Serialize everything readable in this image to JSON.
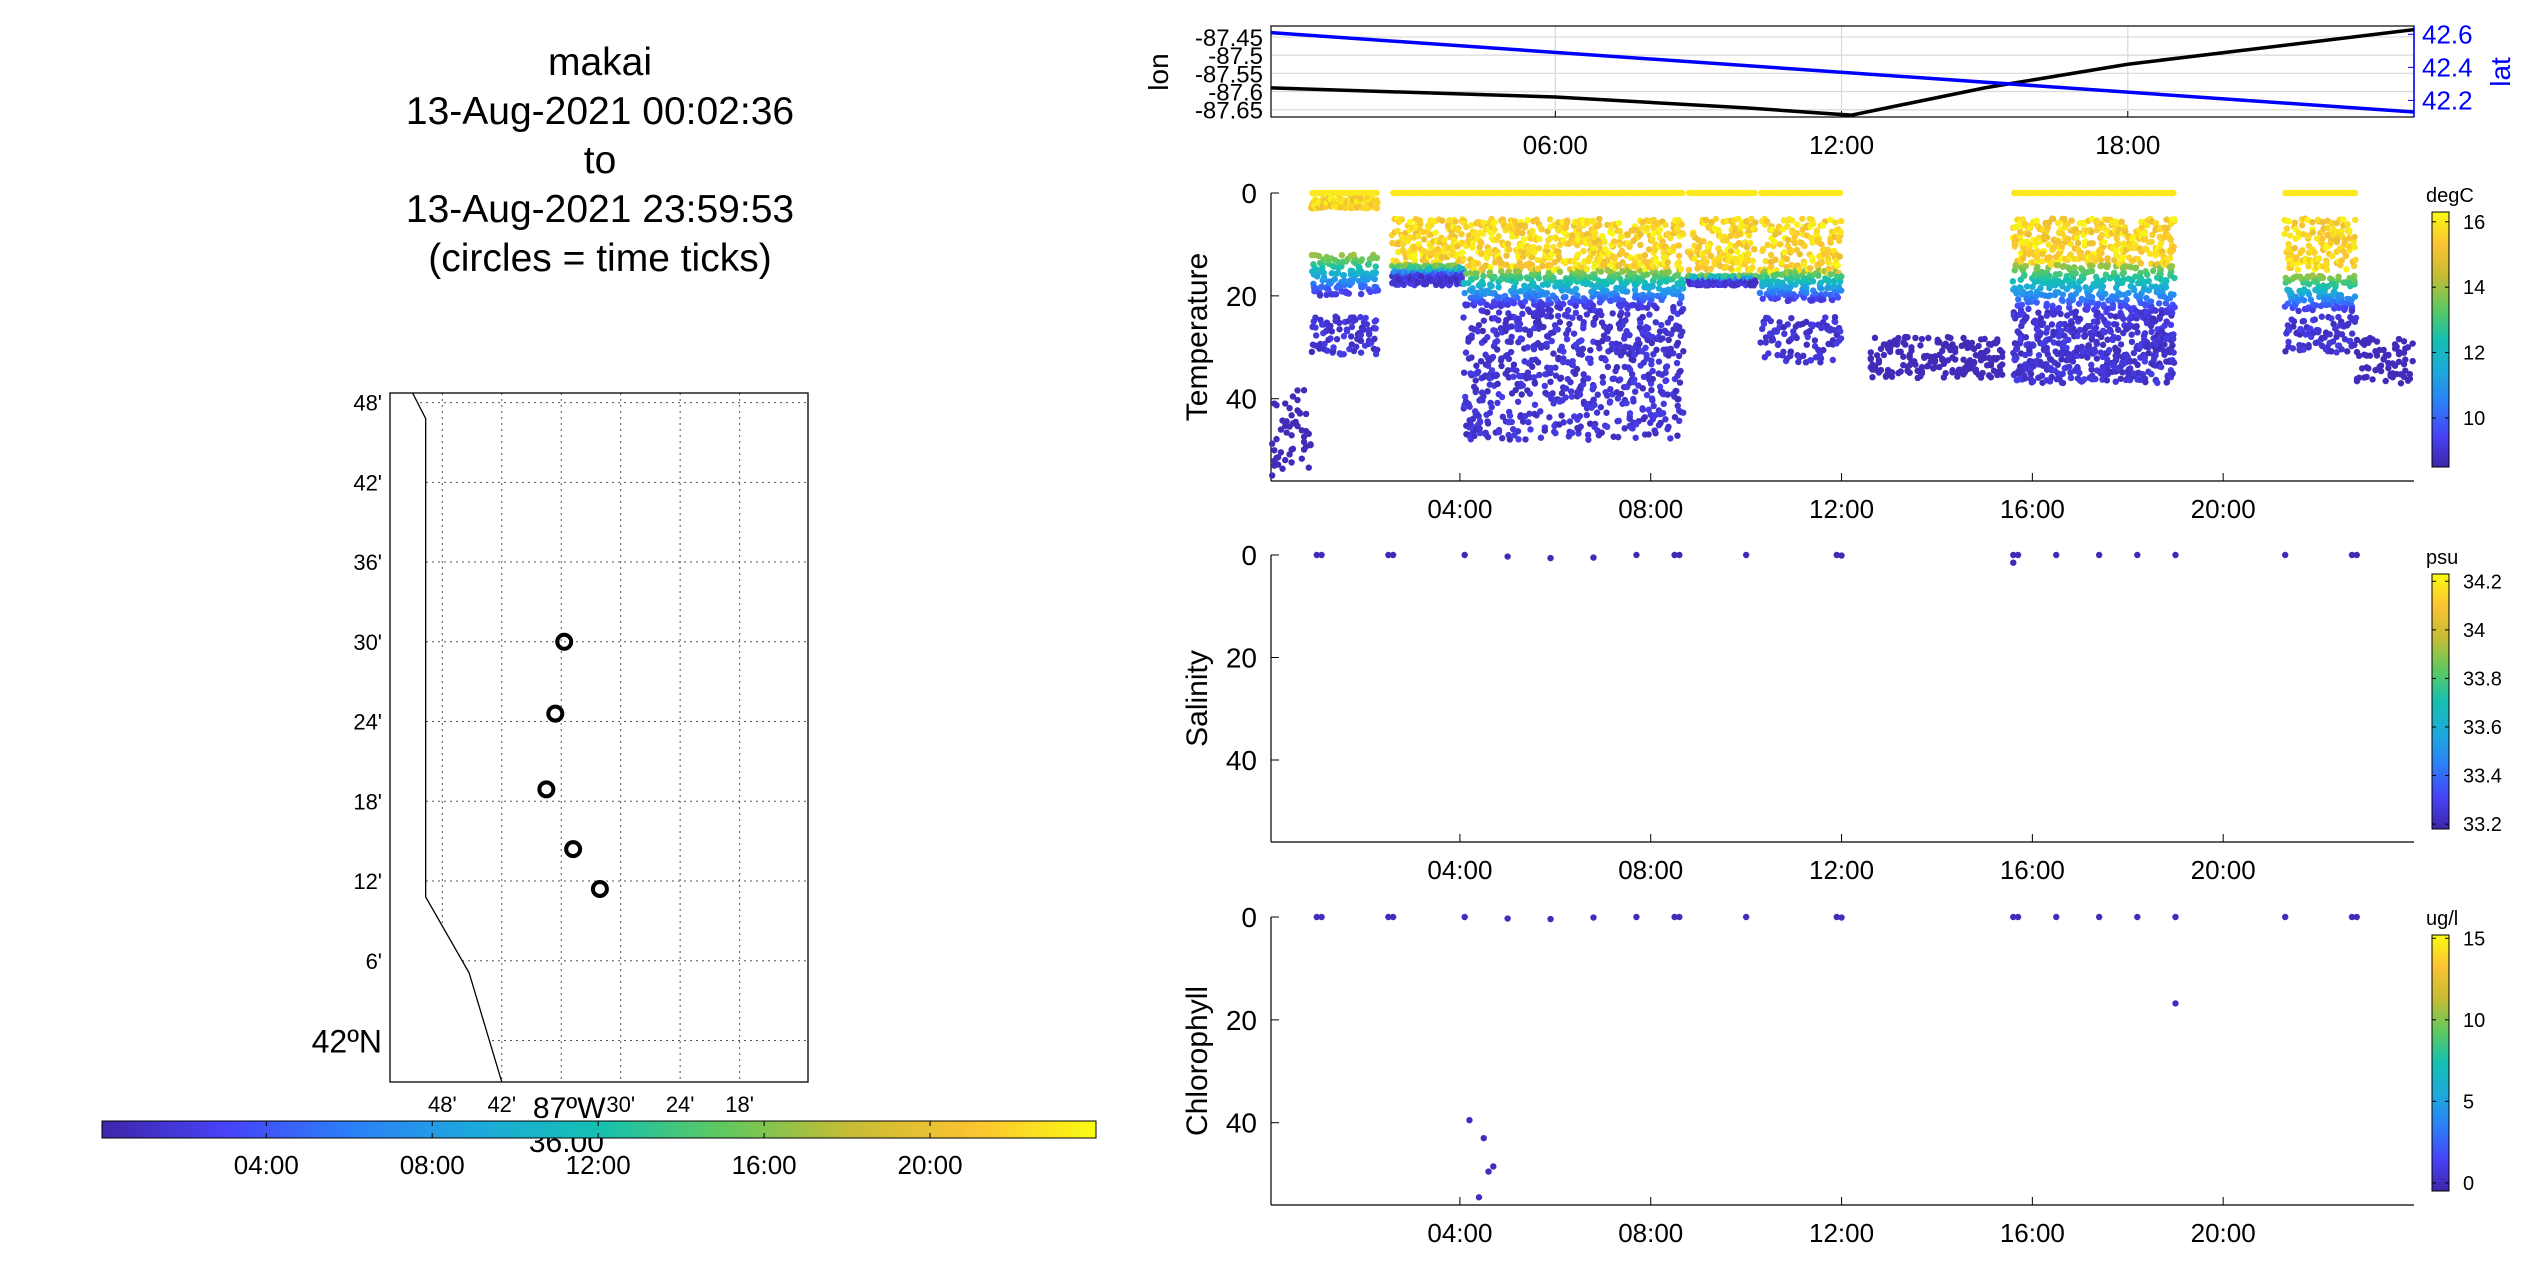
{
  "title": {
    "lines": [
      "makai",
      "13-Aug-2021 00:02:36",
      "to",
      "13-Aug-2021 23:59:53",
      "(circles = time ticks)"
    ]
  },
  "colors": {
    "lat_line": "#0000ff",
    "lon_line": "#000000",
    "grid": "#d9d9d9",
    "parula": [
      "#3e26a8",
      "#4743f8",
      "#2c7ff8",
      "#1da9dc",
      "#14c0b1",
      "#5fc95e",
      "#c6bc34",
      "#fbc332",
      "#f9fa13"
    ]
  },
  "chart_data": [
    {
      "id": "map",
      "type": "scatter",
      "ylabels": [
        "48'",
        "42'",
        "36'",
        "30'",
        "24'",
        "18'",
        "12'",
        "6'",
        "42ºN"
      ],
      "xlabels": [
        "48'",
        "42'",
        "87ºW 36.00'",
        "30'",
        "24'",
        "18'"
      ],
      "xlim": [
        -87.888,
        -87.185
      ],
      "ylim": [
        41.948,
        42.812
      ],
      "coastline": [
        [
          -87.85,
          42.812
        ],
        [
          -87.828,
          42.78
        ],
        [
          -87.828,
          42.18
        ],
        [
          -87.755,
          42.085
        ],
        [
          -87.7,
          41.948
        ]
      ],
      "points": [
        [
          -87.595,
          42.5
        ],
        [
          -87.61,
          42.41
        ],
        [
          -87.625,
          42.315
        ],
        [
          -87.58,
          42.24
        ],
        [
          -87.535,
          42.19
        ]
      ],
      "colorbar": {
        "ticks": [
          "04:00",
          "08:00",
          "12:00",
          "16:00",
          "20:00"
        ],
        "range_hours": [
          0.04,
          24
        ]
      }
    },
    {
      "id": "lonlat",
      "type": "line",
      "ylabel": "lon",
      "ylabel_right": "lat",
      "xlim_hours": [
        0.04,
        24
      ],
      "xticks": [
        "06:00",
        "12:00",
        "18:00"
      ],
      "ylim": [
        -87.67,
        -87.42
      ],
      "yticks": [
        "-87.45",
        "-87.5",
        "-87.55",
        "-87.6",
        "-87.65"
      ],
      "ylim_right": [
        42.1,
        42.65
      ],
      "yticks_right": [
        "42.6",
        "42.4",
        "42.2"
      ],
      "series": [
        {
          "name": "lon",
          "hours": [
            0.04,
            6,
            10,
            12.2,
            15,
            18,
            24
          ],
          "values": [
            -87.59,
            -87.615,
            -87.645,
            -87.665,
            -87.59,
            -87.525,
            -87.43
          ]
        },
        {
          "name": "lat",
          "hours": [
            0.04,
            24
          ],
          "values": [
            42.61,
            42.13
          ]
        }
      ]
    },
    {
      "id": "temperature",
      "type": "scatter",
      "ylabel": "Temperature",
      "unit": "degC",
      "ylim": [
        56,
        0
      ],
      "yticks": [
        "0",
        "20",
        "40"
      ],
      "xticks": [
        "04:00",
        "08:00",
        "12:00",
        "16:00",
        "20:00"
      ],
      "clim": [
        8.5,
        16.3
      ],
      "cticks": [
        "16",
        "14",
        "12",
        "10"
      ],
      "segments": [
        {
          "h0": 0.05,
          "h1": 0.9,
          "kind": "cold_only",
          "d0": 38,
          "d1": 55
        },
        {
          "h0": 0.9,
          "h1": 2.3,
          "kind": "strat",
          "warm_bottom": 3,
          "thermo": [
            12,
            20
          ],
          "cold": [
            24,
            32
          ]
        },
        {
          "h0": 2.6,
          "h1": 4.1,
          "kind": "strat",
          "warm_bottom": 14,
          "thermo": [
            14,
            16
          ],
          "cold": [
            16,
            18
          ]
        },
        {
          "h0": 4.1,
          "h1": 8.7,
          "kind": "strat",
          "warm_bottom": 15,
          "thermo": [
            15,
            22
          ],
          "cold": [
            22,
            48
          ]
        },
        {
          "h0": 8.8,
          "h1": 10.2,
          "kind": "strat",
          "warm_bottom": 15,
          "thermo": [
            16,
            17
          ],
          "cold": [
            17,
            18
          ]
        },
        {
          "h0": 10.3,
          "h1": 12.0,
          "kind": "strat",
          "warm_bottom": 16,
          "thermo": [
            15,
            21
          ],
          "cold": [
            24,
            33
          ]
        },
        {
          "h0": 12.6,
          "h1": 15.4,
          "kind": "cold_only",
          "d0": 28,
          "d1": 36
        },
        {
          "h0": 15.6,
          "h1": 19.0,
          "kind": "strat",
          "warm_bottom": 14,
          "thermo": [
            14,
            23
          ],
          "cold": [
            23,
            37
          ]
        },
        {
          "h0": 21.3,
          "h1": 22.8,
          "kind": "strat",
          "warm_bottom": 15,
          "thermo": [
            16,
            23
          ],
          "cold": [
            24,
            31
          ]
        },
        {
          "h0": 22.8,
          "h1": 24,
          "kind": "cold_only",
          "d0": 28,
          "d1": 37
        }
      ]
    },
    {
      "id": "salinity",
      "type": "scatter",
      "ylabel": "Salinity",
      "unit": "psu",
      "ylim": [
        56,
        0
      ],
      "yticks": [
        "0",
        "20",
        "40"
      ],
      "xticks": [
        "04:00",
        "08:00",
        "12:00",
        "16:00",
        "20:00"
      ],
      "clim": [
        33.18,
        34.23
      ],
      "cticks": [
        "34.2",
        "34",
        "33.8",
        "33.6",
        "33.4",
        "33.2"
      ],
      "points": [
        [
          1.0,
          0
        ],
        [
          1.1,
          0
        ],
        [
          2.5,
          0
        ],
        [
          2.6,
          0
        ],
        [
          4.1,
          0
        ],
        [
          5.0,
          0.3
        ],
        [
          5.9,
          0.6
        ],
        [
          6.8,
          0.5
        ],
        [
          7.7,
          0
        ],
        [
          8.5,
          0
        ],
        [
          8.6,
          0
        ],
        [
          10.0,
          0
        ],
        [
          11.9,
          0
        ],
        [
          12.0,
          0.1
        ],
        [
          15.6,
          0
        ],
        [
          15.6,
          1.5
        ],
        [
          15.7,
          0
        ],
        [
          16.5,
          0
        ],
        [
          17.4,
          0
        ],
        [
          18.2,
          0
        ],
        [
          19.0,
          0
        ],
        [
          21.3,
          0
        ],
        [
          22.7,
          0
        ],
        [
          22.8,
          0
        ]
      ]
    },
    {
      "id": "chlorophyll",
      "type": "scatter",
      "ylabel": "Chlorophyll",
      "unit": "ug/l",
      "ylim": [
        56,
        0
      ],
      "yticks": [
        "0",
        "20",
        "40"
      ],
      "xticks": [
        "04:00",
        "08:00",
        "12:00",
        "16:00",
        "20:00"
      ],
      "clim": [
        -0.5,
        15.2
      ],
      "cticks": [
        "15",
        "10",
        "5",
        "0"
      ],
      "points": [
        [
          1.0,
          0
        ],
        [
          1.1,
          0
        ],
        [
          2.5,
          0
        ],
        [
          2.6,
          0
        ],
        [
          4.1,
          0
        ],
        [
          5.0,
          0.3
        ],
        [
          5.9,
          0.4
        ],
        [
          6.8,
          0.1
        ],
        [
          7.7,
          0
        ],
        [
          8.5,
          0
        ],
        [
          8.6,
          0
        ],
        [
          10.0,
          0
        ],
        [
          11.9,
          0
        ],
        [
          12.0,
          0.1
        ],
        [
          15.6,
          0
        ],
        [
          15.7,
          0
        ],
        [
          16.5,
          0
        ],
        [
          17.4,
          0
        ],
        [
          18.2,
          0
        ],
        [
          19.0,
          0
        ],
        [
          19.0,
          16.8
        ],
        [
          21.3,
          0
        ],
        [
          22.7,
          0
        ],
        [
          22.8,
          0
        ],
        [
          4.2,
          39.5
        ],
        [
          4.5,
          43.0
        ],
        [
          4.7,
          48.5
        ],
        [
          4.6,
          49.5
        ],
        [
          4.4,
          54.5
        ]
      ]
    }
  ]
}
